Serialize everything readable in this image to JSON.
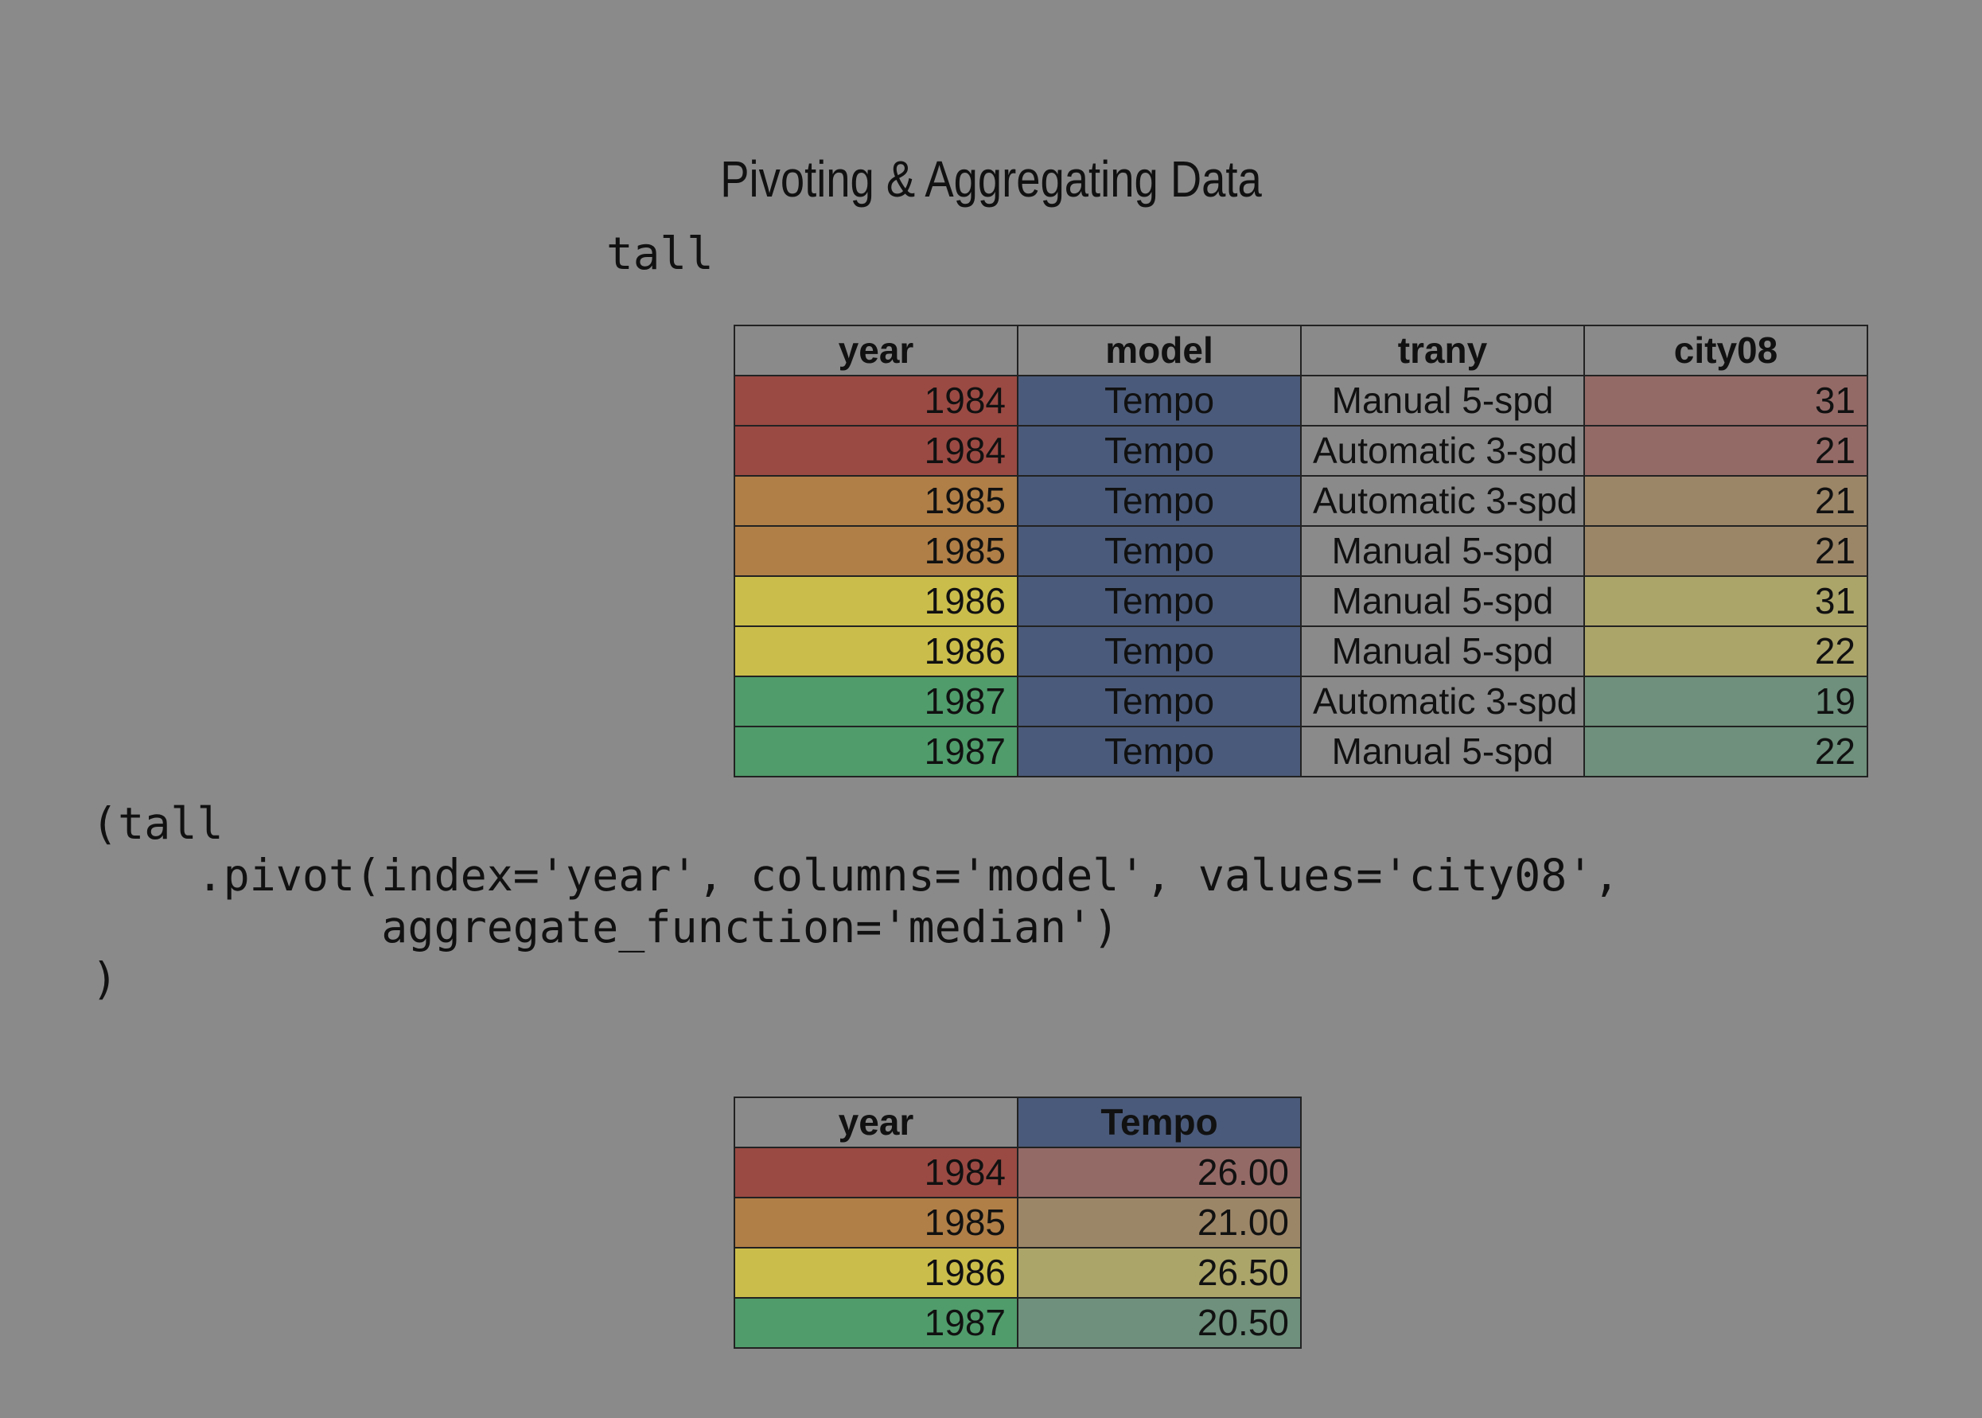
{
  "title": "Pivoting & Aggregating Data",
  "tall_label": "tall",
  "code": "(tall\n    .pivot(index='year', columns='model', values='city08',\n           aggregate_function='median')\n)",
  "colors": {
    "background": "#8a8a8a",
    "year_1984": "#9a4a43",
    "year_1985": "#b07f47",
    "year_1986": "#cbbd4b",
    "year_1987": "#509c6b",
    "model_tempo": "#4a5a7a",
    "city_1984": "#946a67",
    "city_1985": "#9c8668",
    "city_1986": "#aca56a",
    "city_1987": "#6e907c"
  },
  "tall_table": {
    "columns": [
      "year",
      "model",
      "trany",
      "city08"
    ],
    "rows": [
      {
        "year": "1984",
        "model": "Tempo",
        "trany": "Manual 5-spd",
        "city08": "31"
      },
      {
        "year": "1984",
        "model": "Tempo",
        "trany": "Automatic 3-spd",
        "city08": "21"
      },
      {
        "year": "1985",
        "model": "Tempo",
        "trany": "Automatic 3-spd",
        "city08": "21"
      },
      {
        "year": "1985",
        "model": "Tempo",
        "trany": "Manual 5-spd",
        "city08": "21"
      },
      {
        "year": "1986",
        "model": "Tempo",
        "trany": "Manual 5-spd",
        "city08": "31"
      },
      {
        "year": "1986",
        "model": "Tempo",
        "trany": "Manual 5-spd",
        "city08": "22"
      },
      {
        "year": "1987",
        "model": "Tempo",
        "trany": "Automatic 3-spd",
        "city08": "19"
      },
      {
        "year": "1987",
        "model": "Tempo",
        "trany": "Manual 5-spd",
        "city08": "22"
      }
    ]
  },
  "pivot_table": {
    "columns": [
      "year",
      "Tempo"
    ],
    "rows": [
      {
        "year": "1984",
        "Tempo": "26.00"
      },
      {
        "year": "1985",
        "Tempo": "21.00"
      },
      {
        "year": "1986",
        "Tempo": "26.50"
      },
      {
        "year": "1987",
        "Tempo": "20.50"
      }
    ]
  }
}
